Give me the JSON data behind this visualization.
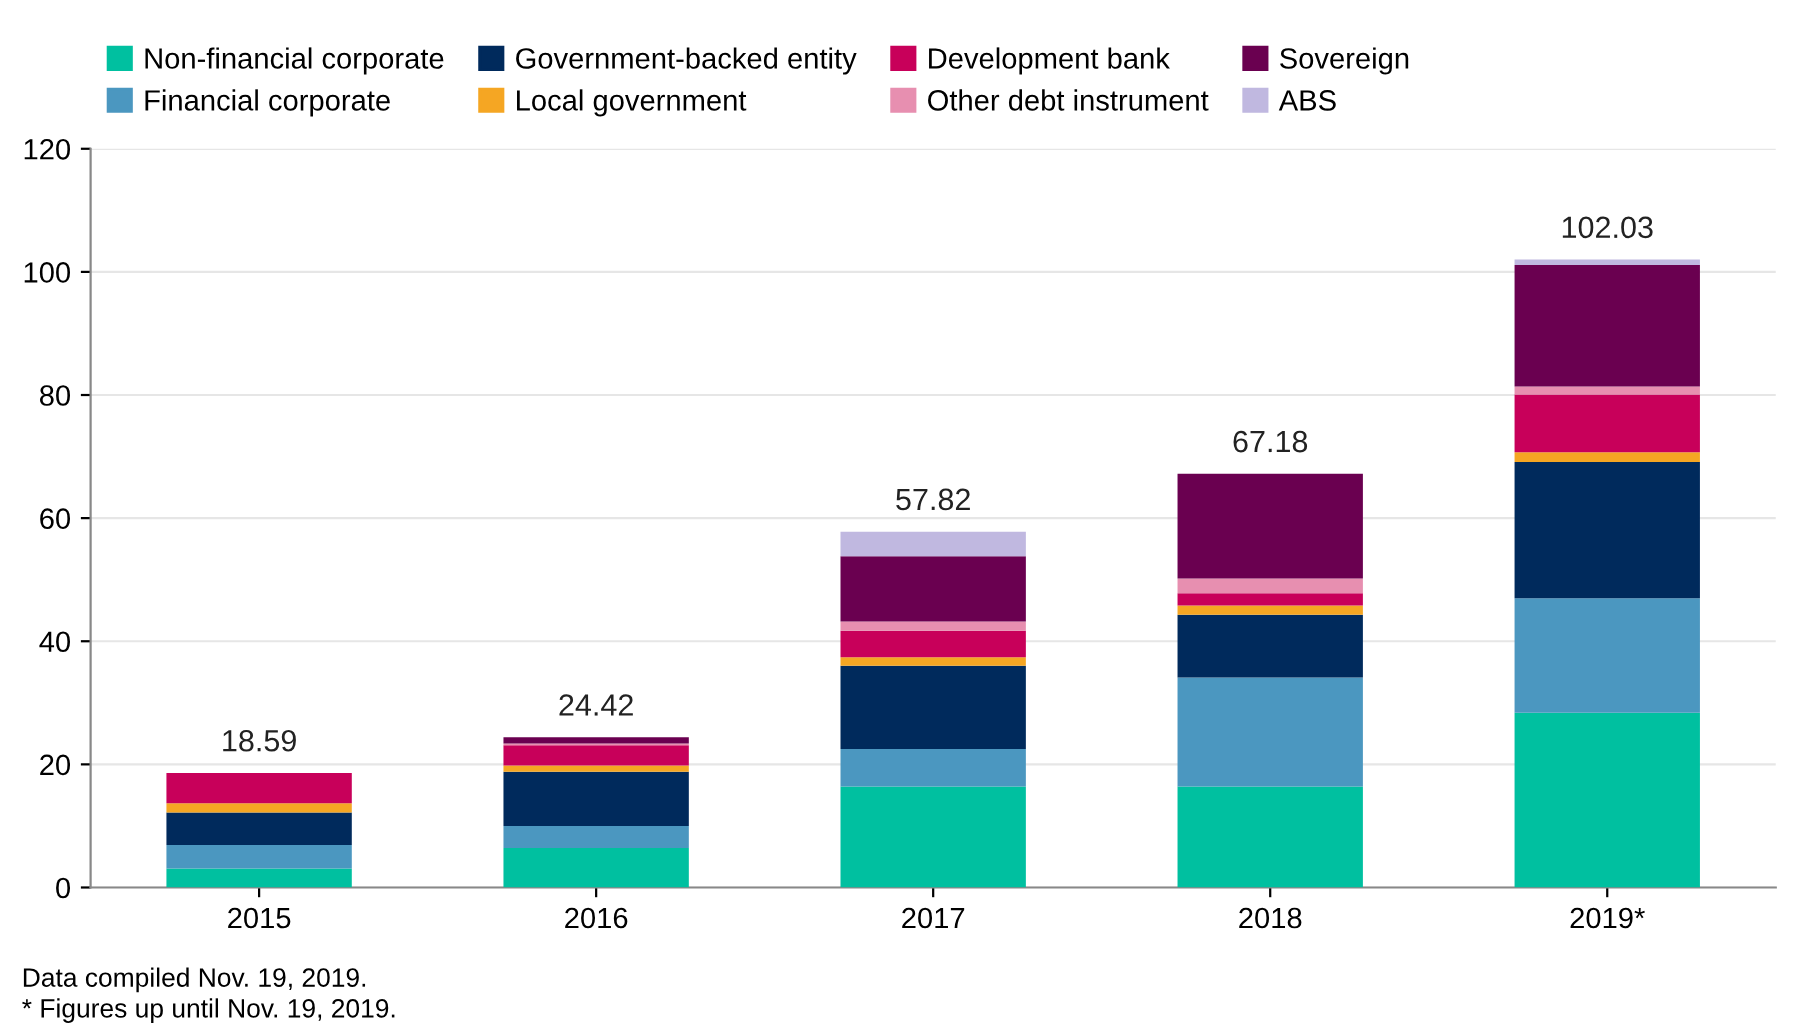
{
  "chart_data": {
    "type": "bar",
    "stacked": true,
    "categories": [
      "2015",
      "2016",
      "2017",
      "2018",
      "2019*"
    ],
    "series": [
      {
        "name": "Non-financial corporate",
        "color": "#00c0a0",
        "values": [
          3.1,
          6.4,
          16.4,
          16.4,
          28.4
        ]
      },
      {
        "name": "Financial corporate",
        "color": "#4b97c0",
        "values": [
          3.8,
          3.6,
          6.1,
          17.7,
          18.6
        ]
      },
      {
        "name": "Government-backed entity",
        "color": "#002a5c",
        "values": [
          5.3,
          8.8,
          13.5,
          10.2,
          22.1
        ]
      },
      {
        "name": "Local government",
        "color": "#f5a623",
        "values": [
          1.5,
          1.0,
          1.4,
          1.5,
          1.6
        ]
      },
      {
        "name": "Development bank",
        "color": "#c8005a",
        "values": [
          4.9,
          3.3,
          4.3,
          2.0,
          9.4
        ]
      },
      {
        "name": "Other debt instrument",
        "color": "#e78fb0",
        "values": [
          0,
          0.3,
          1.5,
          2.4,
          1.3
        ]
      },
      {
        "name": "Sovereign",
        "color": "#6a0050",
        "values": [
          0,
          1.0,
          10.6,
          17.0,
          19.7
        ]
      },
      {
        "name": "ABS",
        "color": "#c0b8e0",
        "values": [
          0,
          0,
          4.0,
          null,
          0.9
        ]
      }
    ],
    "totals": [
      "18.59",
      "24.42",
      "57.82",
      "67.18",
      "102.03"
    ],
    "ylim": [
      0,
      120
    ],
    "yticks": [
      0,
      20,
      40,
      60,
      80,
      100,
      120
    ],
    "grid": "y",
    "legend": "top",
    "annotations": [
      "Data compiled Nov. 19, 2019.",
      "* Figures up until Nov. 19, 2019."
    ]
  }
}
